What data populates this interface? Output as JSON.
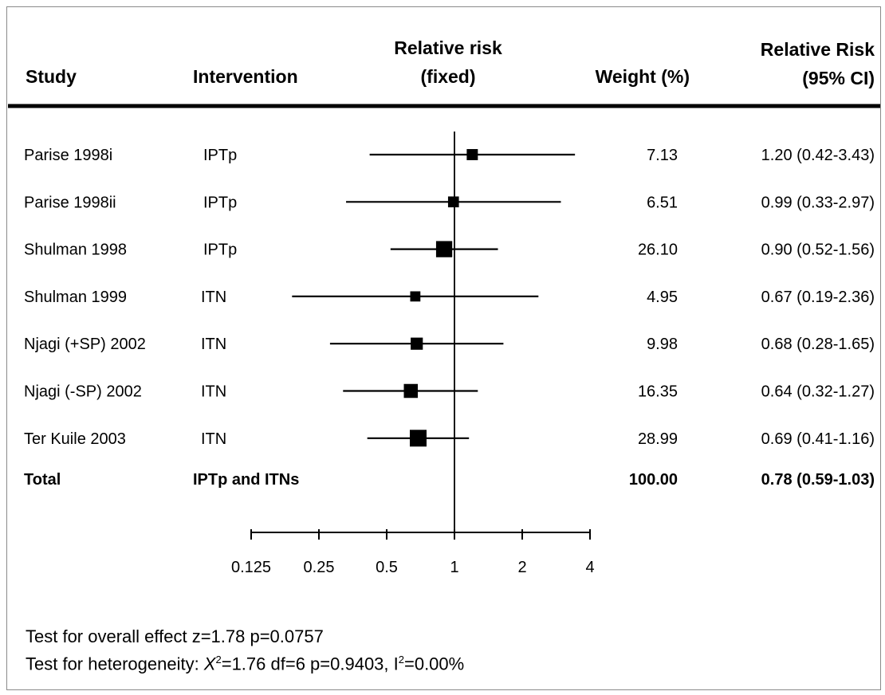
{
  "columns": {
    "study": "Study",
    "intervention": "Intervention",
    "rr_fixed_line1": "Relative risk",
    "rr_fixed_line2": "(fixed)",
    "weight": "Weight (%)",
    "rr_ci_line1": "Relative Risk",
    "rr_ci_line2": "(95% CI)"
  },
  "chart_data": {
    "type": "forest",
    "x_scale": "log2",
    "xlim": [
      0.125,
      4
    ],
    "x_ticks": [
      "0.125",
      "0.25",
      "0.5",
      "1",
      "2",
      "4"
    ],
    "reference_line": 1,
    "studies": [
      {
        "study": "Parise 1998i",
        "intervention": "IPTp",
        "rr": 1.2,
        "ci_low": 0.42,
        "ci_high": 3.43,
        "weight": 7.13,
        "weight_label": "7.13",
        "rr_ci_label": "1.20 (0.42-3.43)"
      },
      {
        "study": "Parise 1998ii",
        "intervention": "IPTp",
        "rr": 0.99,
        "ci_low": 0.33,
        "ci_high": 2.97,
        "weight": 6.51,
        "weight_label": "6.51",
        "rr_ci_label": "0.99 (0.33-2.97)"
      },
      {
        "study": "Shulman 1998",
        "intervention": "IPTp",
        "rr": 0.9,
        "ci_low": 0.52,
        "ci_high": 1.56,
        "weight": 26.1,
        "weight_label": "26.10",
        "rr_ci_label": "0.90 (0.52-1.56)"
      },
      {
        "study": "Shulman 1999",
        "intervention": "ITN",
        "rr": 0.67,
        "ci_low": 0.19,
        "ci_high": 2.36,
        "weight": 4.95,
        "weight_label": "4.95",
        "rr_ci_label": "0.67 (0.19-2.36)"
      },
      {
        "study": "Njagi (+SP) 2002",
        "intervention": "ITN",
        "rr": 0.68,
        "ci_low": 0.28,
        "ci_high": 1.65,
        "weight": 9.98,
        "weight_label": "9.98",
        "rr_ci_label": "0.68 (0.28-1.65)"
      },
      {
        "study": "Njagi (-SP) 2002",
        "intervention": "ITN",
        "rr": 0.64,
        "ci_low": 0.32,
        "ci_high": 1.27,
        "weight": 16.35,
        "weight_label": "16.35",
        "rr_ci_label": "0.64 (0.32-1.27)"
      },
      {
        "study": "Ter Kuile 2003",
        "intervention": "ITN",
        "rr": 0.69,
        "ci_low": 0.41,
        "ci_high": 1.16,
        "weight": 28.99,
        "weight_label": "28.99",
        "rr_ci_label": "0.69 (0.41-1.16)"
      }
    ],
    "total": {
      "study": "Total",
      "intervention": "IPTp and ITNs",
      "rr": 0.78,
      "ci_low": 0.59,
      "ci_high": 1.03,
      "weight": 100.0,
      "weight_label": "100.00",
      "rr_ci_label": "0.78 (0.59-1.03)"
    }
  },
  "footer": {
    "overall_effect": "Test for overall effect z=1.78 p=0.0757",
    "heterogeneity_prefix": "Test for heterogeneity: ",
    "heterogeneity_symbol": "X",
    "heterogeneity_sup1": "2",
    "heterogeneity_mid": "=1.76 df=6 p=0.9403, I",
    "heterogeneity_sup2": "2",
    "heterogeneity_suffix": "=0.00%"
  }
}
